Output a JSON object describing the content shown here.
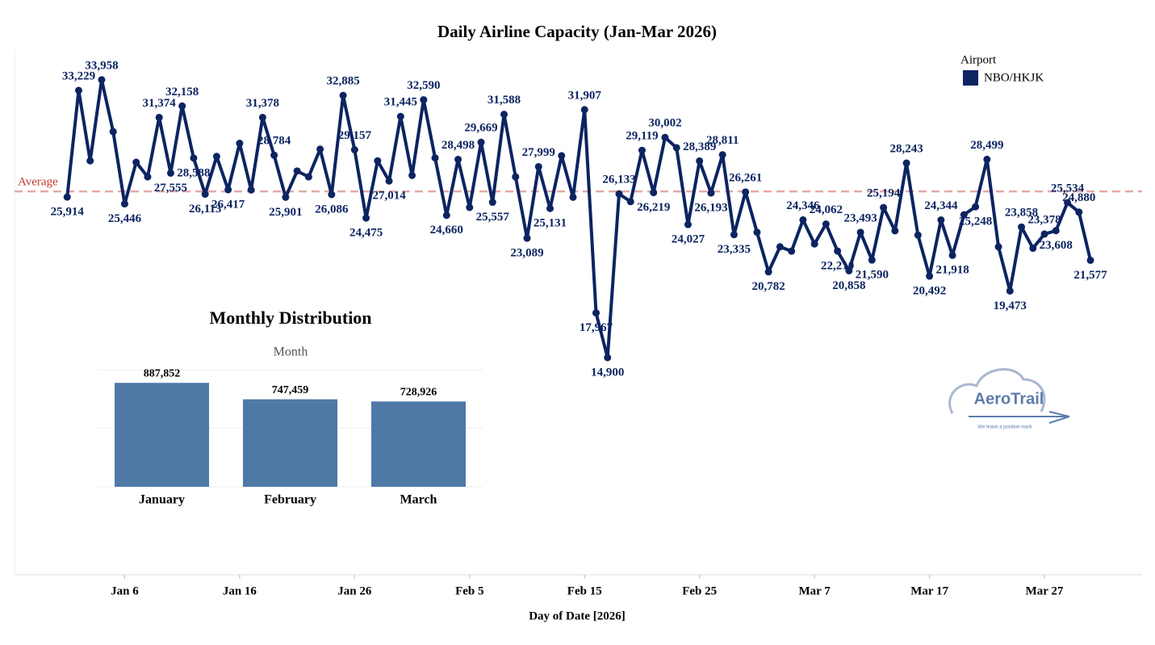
{
  "chart_data": [
    {
      "type": "line",
      "title": "Daily Airline Capacity (Jan-Mar 2026)",
      "x_label": "Day of Date [2026]",
      "legend_title": "Airport",
      "legend": "top-right",
      "x": [
        "2026-01-01",
        "2026-01-02",
        "2026-01-03",
        "2026-01-04",
        "2026-01-05",
        "2026-01-06",
        "2026-01-07",
        "2026-01-08",
        "2026-01-09",
        "2026-01-10",
        "2026-01-11",
        "2026-01-12",
        "2026-01-13",
        "2026-01-14",
        "2026-01-15",
        "2026-01-16",
        "2026-01-17",
        "2026-01-18",
        "2026-01-19",
        "2026-01-20",
        "2026-01-21",
        "2026-01-22",
        "2026-01-23",
        "2026-01-24",
        "2026-01-25",
        "2026-01-26",
        "2026-01-27",
        "2026-01-28",
        "2026-01-29",
        "2026-01-30",
        "2026-01-31",
        "2026-02-01",
        "2026-02-02",
        "2026-02-03",
        "2026-02-04",
        "2026-02-05",
        "2026-02-06",
        "2026-02-07",
        "2026-02-08",
        "2026-02-09",
        "2026-02-10",
        "2026-02-11",
        "2026-02-12",
        "2026-02-13",
        "2026-02-14",
        "2026-02-15",
        "2026-02-16",
        "2026-02-17",
        "2026-02-18",
        "2026-02-19",
        "2026-02-20",
        "2026-02-21",
        "2026-02-22",
        "2026-02-23",
        "2026-02-24",
        "2026-02-25",
        "2026-02-26",
        "2026-02-27",
        "2026-02-28",
        "2026-03-01",
        "2026-03-02",
        "2026-03-03",
        "2026-03-04",
        "2026-03-05",
        "2026-03-06",
        "2026-03-07",
        "2026-03-08",
        "2026-03-09",
        "2026-03-10",
        "2026-03-11",
        "2026-03-12",
        "2026-03-13",
        "2026-03-14",
        "2026-03-15",
        "2026-03-16",
        "2026-03-17",
        "2026-03-18",
        "2026-03-19",
        "2026-03-20",
        "2026-03-21",
        "2026-03-22",
        "2026-03-23",
        "2026-03-24",
        "2026-03-25",
        "2026-03-26",
        "2026-03-27",
        "2026-03-28",
        "2026-03-29",
        "2026-03-30",
        "2026-03-31"
      ],
      "series": [
        {
          "name": "NBO/HKJK",
          "color": "#0c2461",
          "values": [
            25914,
            33229,
            28400,
            33958,
            30400,
            25446,
            28300,
            27300,
            31374,
            27555,
            32158,
            28588,
            26113,
            28700,
            26417,
            29600,
            26400,
            31378,
            28784,
            25901,
            27700,
            27300,
            29200,
            26086,
            32885,
            29157,
            24475,
            28400,
            27014,
            31445,
            27400,
            32590,
            28600,
            24660,
            28498,
            25200,
            29669,
            25557,
            31588,
            27300,
            23089,
            27999,
            25131,
            28750,
            25900,
            31907,
            17967,
            14900,
            26133,
            25600,
            29119,
            26219,
            30002,
            29300,
            24027,
            28389,
            26193,
            28811,
            23335,
            26261,
            23500,
            20782,
            22500,
            22200,
            24346,
            22700,
            24062,
            22210,
            20858,
            23493,
            21590,
            25194,
            23600,
            28243,
            23300,
            20492,
            24344,
            21918,
            24700,
            25248,
            28499,
            22500,
            19473,
            23858,
            22400,
            23378,
            23608,
            25534,
            24880,
            21577
          ],
          "value_labels": [
            "25,914",
            "33,229",
            null,
            "33,958",
            null,
            "25,446",
            null,
            null,
            "31,374",
            "27,555",
            "32,158",
            "28,588",
            "26,113",
            null,
            "26,417",
            null,
            null,
            "31,378",
            "28,784",
            "25,901",
            null,
            null,
            null,
            "26,086",
            "32,885",
            "29,157",
            "24,475",
            null,
            "27,014",
            "31,445",
            null,
            "32,590",
            null,
            "24,660",
            "28,498",
            null,
            "29,669",
            "25,557",
            "31,588",
            null,
            "23,089",
            "27,999",
            "25,131",
            null,
            null,
            "31,907",
            "17,967",
            "14,900",
            "26,133",
            null,
            "29,119",
            "26,219",
            "30,002",
            null,
            "24,027",
            "28,389",
            "26,193",
            "28,811",
            "23,335",
            "26,261",
            null,
            "20,782",
            null,
            null,
            "24,346",
            null,
            "24,062",
            "22,210",
            "20,858",
            "23,493",
            "21,590",
            "25,194",
            null,
            "28,243",
            null,
            "20,492",
            "24,344",
            "21,918",
            null,
            "25,248",
            "28,499",
            null,
            "19,473",
            "23,858",
            null,
            "23,378",
            "23,608",
            "25,534",
            "24,880",
            "21,577"
          ]
        }
      ],
      "average": 26300,
      "average_label": "Average",
      "xlim": [
        "2025-12-27",
        "2026-04-04"
      ],
      "ylim": [
        0,
        36000
      ],
      "xticks": [
        {
          "value": "2026-01-06",
          "label": "Jan 6"
        },
        {
          "value": "2026-01-16",
          "label": "Jan 16"
        },
        {
          "value": "2026-01-26",
          "label": "Jan 26"
        },
        {
          "value": "2026-02-05",
          "label": "Feb 5"
        },
        {
          "value": "2026-02-15",
          "label": "Feb 15"
        },
        {
          "value": "2026-02-25",
          "label": "Feb 25"
        },
        {
          "value": "2026-03-07",
          "label": "Mar 7"
        },
        {
          "value": "2026-03-17",
          "label": "Mar 17"
        },
        {
          "value": "2026-03-27",
          "label": "Mar 27"
        }
      ],
      "logo": {
        "name": "AeroTrail",
        "tagline": "We leave a positive mark"
      }
    },
    {
      "type": "bar",
      "title": "Monthly Distribution",
      "subtitle": "Month",
      "categories": [
        "January",
        "February",
        "March"
      ],
      "values": [
        887852,
        747459,
        728926
      ],
      "value_labels": [
        "887,852",
        "747,459",
        "728,926"
      ],
      "color": "#4e79a7",
      "ylim": [
        0,
        1000000
      ],
      "yticks": [
        0,
        500000,
        1000000
      ],
      "grid": true
    }
  ]
}
